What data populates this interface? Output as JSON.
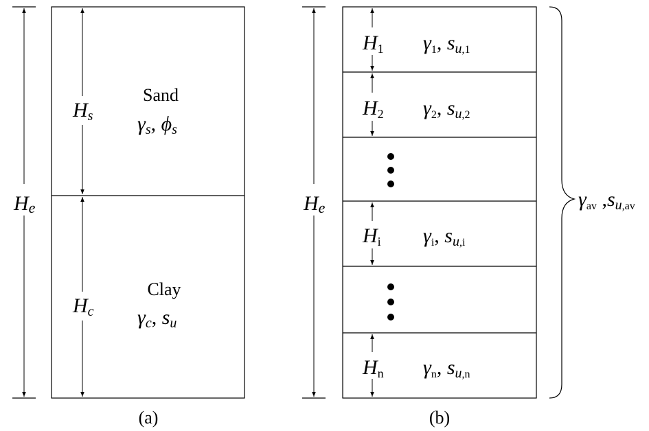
{
  "panel_a": {
    "caption": "(a)",
    "total_height": "H",
    "total_height_sub": "e",
    "sand": {
      "thickness": "H",
      "thickness_sub": "s",
      "name": "Sand",
      "param1": "γ",
      "param1_sub": "s",
      "param2": "ϕ",
      "param2_sub": "s"
    },
    "clay": {
      "thickness": "H",
      "thickness_sub": "c",
      "name": "Clay",
      "param1": "γ",
      "param1_sub": "c",
      "param2": "s",
      "param2_sub": "u"
    }
  },
  "panel_b": {
    "caption": "(b)",
    "total_height": "H",
    "total_height_sub": "e",
    "layers": [
      {
        "h": "H",
        "h_sub": "1",
        "g": "γ",
        "g_sub": "1",
        "s": "s",
        "s_sub_it": "u",
        "s_sub": ",1"
      },
      {
        "h": "H",
        "h_sub": "2",
        "g": "γ",
        "g_sub": "2",
        "s": "s",
        "s_sub_it": "u",
        "s_sub": ",2"
      },
      {
        "h": "H",
        "h_sub": "i",
        "g": "γ",
        "g_sub": "i",
        "s": "s",
        "s_sub_it": "u",
        "s_sub": ",i"
      },
      {
        "h": "H",
        "h_sub": "n",
        "g": "γ",
        "g_sub": "n",
        "s": "s",
        "s_sub_it": "u",
        "s_sub": ",n"
      }
    ],
    "average": {
      "g": "γ",
      "g_sub": "av",
      "s": "s",
      "s_sub_it": "u",
      "s_sub": ",av"
    }
  }
}
